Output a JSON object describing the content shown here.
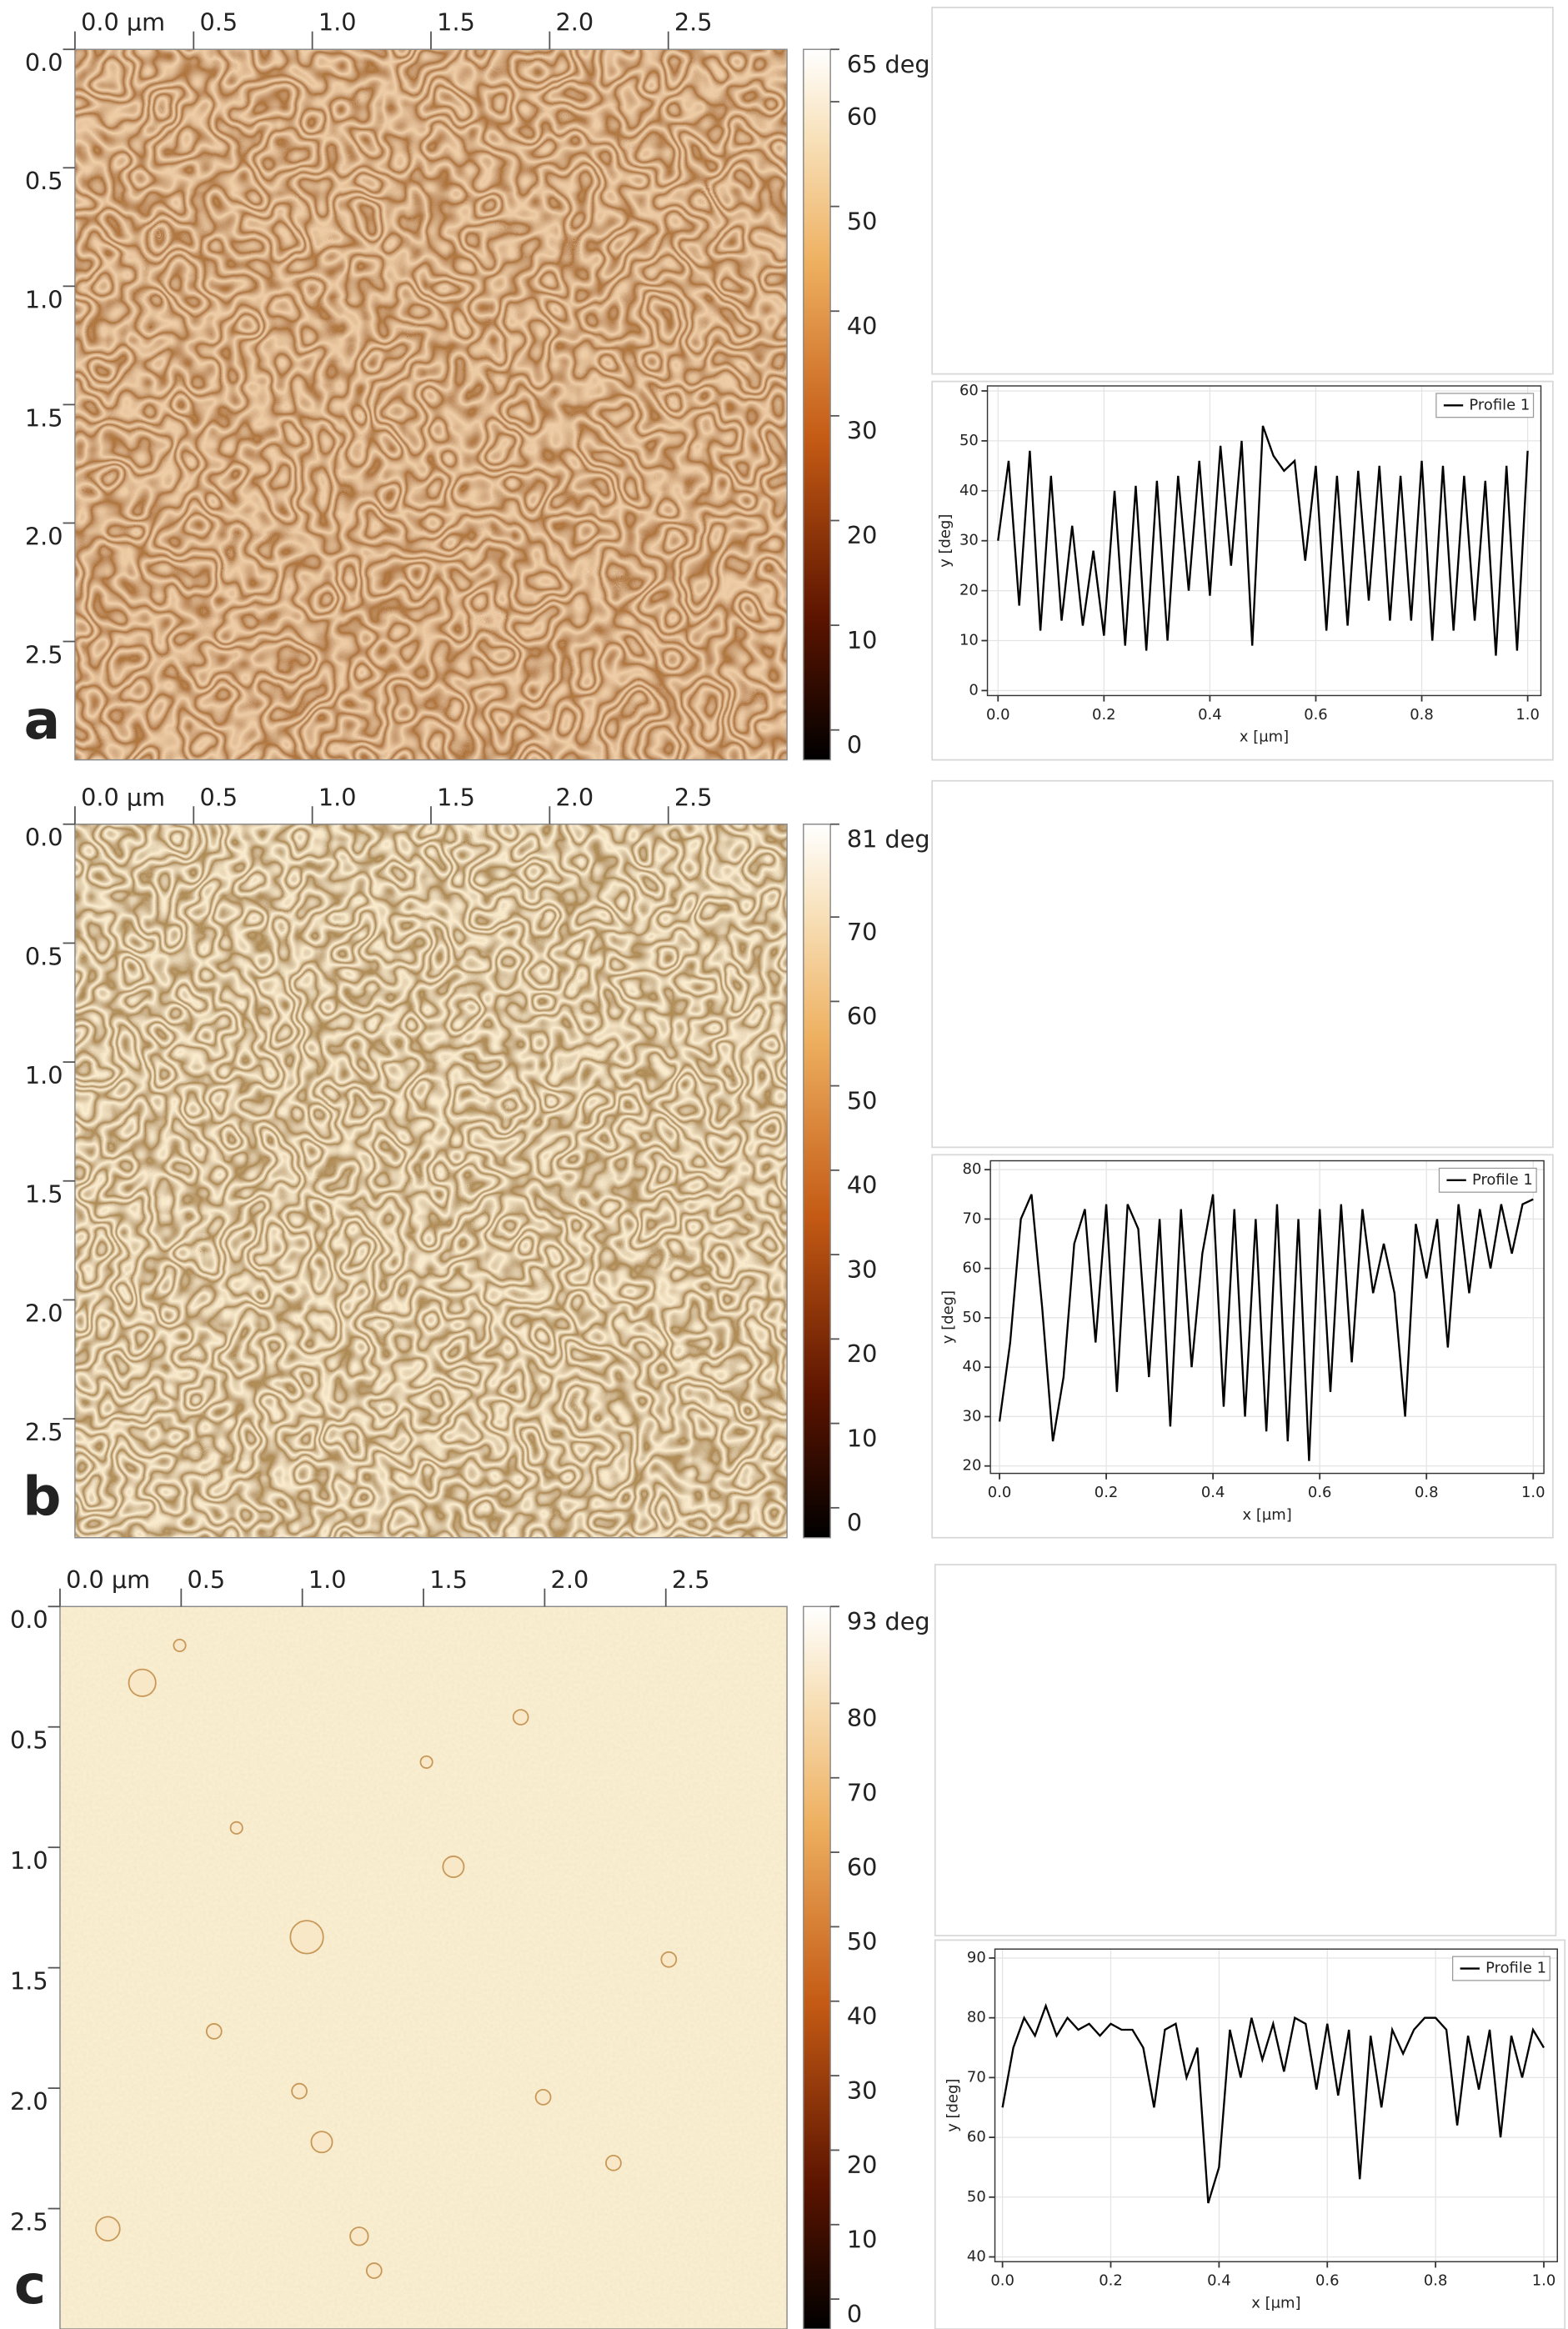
{
  "chart_data": [
    {
      "type": "image",
      "panel_label": "a",
      "xlim": [
        0,
        3
      ],
      "xticks": [
        {
          "value": 0,
          "label": "0.0 µm"
        },
        0.5,
        {
          "value": 1,
          "label": "1.0"
        },
        1.5,
        {
          "value": 2,
          "label": "2.0"
        },
        2.5
      ],
      "ylim": [
        0,
        3
      ],
      "yticks": [
        {
          "value": 0,
          "label": "0.0"
        },
        0.5,
        {
          "value": 1,
          "label": "1.0"
        },
        1.5,
        {
          "value": 2,
          "label": "2.0"
        },
        2.5
      ],
      "colorbar": {
        "zlim": [
          0,
          65
        ],
        "zticks": [
          0,
          10,
          20,
          30,
          40,
          50,
          60,
          {
            "value": 65,
            "label": "65 deg"
          }
        ]
      }
    },
    {
      "type": "line",
      "xlabel": "x [µm]",
      "ylabel": "y [deg]",
      "xlim": [
        -0.02,
        1.025
      ],
      "xticks": [
        {
          "value": 0,
          "label": "0.0"
        },
        0.2,
        0.4,
        0.6,
        0.8,
        {
          "value": 1,
          "label": "1.0"
        }
      ],
      "ylim": [
        -1,
        61
      ],
      "yticks": [
        0,
        10,
        20,
        30,
        40,
        50,
        60
      ],
      "grid": true,
      "legend": "upper right",
      "x": [
        0,
        0.02,
        0.04,
        0.06,
        0.08,
        0.1,
        0.12,
        0.14,
        0.16,
        0.18,
        0.2,
        0.22,
        0.24,
        0.26,
        0.28,
        0.3,
        0.32,
        0.34,
        0.36,
        0.38,
        0.4,
        0.42,
        0.44,
        0.46,
        0.48,
        0.5,
        0.52,
        0.54,
        0.56,
        0.58,
        0.6,
        0.62,
        0.64,
        0.66,
        0.68,
        0.7,
        0.72,
        0.74,
        0.76,
        0.78,
        0.8,
        0.82,
        0.84,
        0.86,
        0.88,
        0.9,
        0.92,
        0.94,
        0.96,
        0.98,
        1
      ],
      "series": [
        {
          "name": "Profile 1",
          "color": "#000000",
          "values": [
            30,
            46,
            17,
            48,
            12,
            43,
            14,
            33,
            13,
            28,
            11,
            40,
            9,
            41,
            8,
            42,
            10,
            43,
            20,
            46,
            19,
            49,
            25,
            50,
            9,
            53,
            47,
            44,
            46,
            26,
            45,
            12,
            43,
            13,
            44,
            18,
            45,
            14,
            43,
            14,
            46,
            10,
            45,
            12,
            43,
            14,
            42,
            7,
            45,
            8,
            48
          ]
        }
      ]
    },
    {
      "type": "image",
      "panel_label": "b",
      "xlim": [
        0,
        3
      ],
      "xticks": [
        {
          "value": 0,
          "label": "0.0 µm"
        },
        0.5,
        {
          "value": 1,
          "label": "1.0"
        },
        1.5,
        {
          "value": 2,
          "label": "2.0"
        },
        2.5
      ],
      "ylim": [
        0,
        3
      ],
      "yticks": [
        {
          "value": 0,
          "label": "0.0"
        },
        0.5,
        {
          "value": 1,
          "label": "1.0"
        },
        1.5,
        {
          "value": 2,
          "label": "2.0"
        },
        2.5
      ],
      "colorbar": {
        "zlim": [
          0,
          81
        ],
        "zticks": [
          0,
          10,
          20,
          30,
          40,
          50,
          60,
          70,
          {
            "value": 81,
            "label": "81 deg"
          }
        ]
      }
    },
    {
      "type": "line",
      "xlabel": "x [µm]",
      "ylabel": "y [deg]",
      "xlim": [
        -0.017,
        1.02
      ],
      "xticks": [
        {
          "value": 0,
          "label": "0.0"
        },
        0.2,
        0.4,
        0.6,
        0.8,
        {
          "value": 1,
          "label": "1.0"
        }
      ],
      "ylim": [
        18.5,
        81.8
      ],
      "yticks": [
        20,
        30,
        40,
        50,
        60,
        70,
        80
      ],
      "grid": true,
      "legend": "upper right",
      "x": [
        0,
        0.02,
        0.04,
        0.06,
        0.08,
        0.1,
        0.12,
        0.14,
        0.16,
        0.18,
        0.2,
        0.22,
        0.24,
        0.26,
        0.28,
        0.3,
        0.32,
        0.34,
        0.36,
        0.38,
        0.4,
        0.42,
        0.44,
        0.46,
        0.48,
        0.5,
        0.52,
        0.54,
        0.56,
        0.58,
        0.6,
        0.62,
        0.64,
        0.66,
        0.68,
        0.7,
        0.72,
        0.74,
        0.76,
        0.78,
        0.8,
        0.82,
        0.84,
        0.86,
        0.88,
        0.9,
        0.92,
        0.94,
        0.96,
        0.98,
        1
      ],
      "series": [
        {
          "name": "Profile 1",
          "color": "#000000",
          "values": [
            29,
            45,
            70,
            75,
            52,
            25,
            38,
            65,
            72,
            45,
            73,
            35,
            73,
            68,
            38,
            70,
            28,
            72,
            40,
            63,
            75,
            32,
            72,
            30,
            70,
            27,
            73,
            25,
            70,
            21,
            72,
            35,
            73,
            41,
            72,
            55,
            65,
            55,
            30,
            69,
            58,
            70,
            44,
            73,
            55,
            72,
            60,
            73,
            63,
            73,
            74
          ]
        }
      ]
    },
    {
      "type": "image",
      "panel_label": "c",
      "xlim": [
        0,
        3
      ],
      "xticks": [
        {
          "value": 0,
          "label": "0.0 µm"
        },
        0.5,
        {
          "value": 1,
          "label": "1.0"
        },
        1.5,
        {
          "value": 2,
          "label": "2.0"
        },
        2.5
      ],
      "ylim": [
        0,
        3
      ],
      "yticks": [
        {
          "value": 0,
          "label": "0.0"
        },
        0.5,
        {
          "value": 1,
          "label": "1.0"
        },
        1.5,
        {
          "value": 2,
          "label": "2.0"
        },
        2.5
      ],
      "colorbar": {
        "zlim": [
          0,
          93
        ],
        "zticks": [
          0,
          10,
          20,
          30,
          40,
          50,
          60,
          70,
          80,
          {
            "value": 93,
            "label": "93 deg"
          }
        ]
      }
    },
    {
      "type": "line",
      "xlabel": "x [µm]",
      "ylabel": "y [deg]",
      "xlim": [
        -0.014,
        1.025
      ],
      "xticks": [
        {
          "value": 0,
          "label": "0.0"
        },
        0.2,
        0.4,
        0.6,
        0.8,
        {
          "value": 1,
          "label": "1.0"
        }
      ],
      "ylim": [
        39.2,
        91.5
      ],
      "yticks": [
        40,
        50,
        60,
        70,
        80,
        90
      ],
      "grid": true,
      "legend": "upper right",
      "x": [
        0,
        0.02,
        0.04,
        0.06,
        0.08,
        0.1,
        0.12,
        0.14,
        0.16,
        0.18,
        0.2,
        0.22,
        0.24,
        0.26,
        0.28,
        0.3,
        0.32,
        0.34,
        0.36,
        0.38,
        0.4,
        0.42,
        0.44,
        0.46,
        0.48,
        0.5,
        0.52,
        0.54,
        0.56,
        0.58,
        0.6,
        0.62,
        0.64,
        0.66,
        0.68,
        0.7,
        0.72,
        0.74,
        0.76,
        0.78,
        0.8,
        0.82,
        0.84,
        0.86,
        0.88,
        0.9,
        0.92,
        0.94,
        0.96,
        0.98,
        1
      ],
      "series": [
        {
          "name": "Profile 1",
          "color": "#000000",
          "values": [
            65,
            75,
            80,
            77,
            82,
            77,
            80,
            78,
            79,
            77,
            79,
            78,
            78,
            75,
            65,
            78,
            79,
            70,
            75,
            49,
            55,
            78,
            70,
            80,
            73,
            79,
            71,
            80,
            79,
            68,
            79,
            67,
            78,
            53,
            77,
            65,
            78,
            74,
            78,
            80,
            80,
            78,
            62,
            77,
            68,
            78,
            60,
            77,
            70,
            78,
            75
          ]
        }
      ]
    }
  ]
}
